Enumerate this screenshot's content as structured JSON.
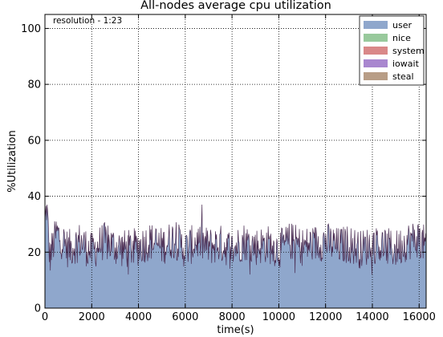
{
  "chart_data": {
    "type": "area",
    "title": "All-nodes average cpu utilization",
    "xlabel": "time(s)",
    "ylabel": "%Utilization",
    "annotation": "resolution - 1:23",
    "xlim": [
      0,
      16300
    ],
    "ylim": [
      0,
      105
    ],
    "x_ticks": [
      0,
      2000,
      4000,
      6000,
      8000,
      10000,
      12000,
      14000,
      16000
    ],
    "y_ticks": [
      0,
      20,
      40,
      60,
      80,
      100
    ],
    "grid": true,
    "legend_position": "top-right",
    "sample_interval": 23,
    "series": [
      {
        "name": "user",
        "color": "#8fa7cc",
        "summary": {
          "mean": 21.5,
          "min": 12,
          "max": 37
        }
      },
      {
        "name": "nice",
        "color": "#98c99c"
      },
      {
        "name": "system",
        "color": "#d98888"
      },
      {
        "name": "iowait",
        "color": "#a987cf"
      },
      {
        "name": "steal",
        "color": "#b89d86"
      }
    ],
    "envelope_line_color": "#4a2c52",
    "keypoints": [
      {
        "x": 0,
        "y": 30
      },
      {
        "x": 80,
        "y": 37
      },
      {
        "x": 200,
        "y": 18
      },
      {
        "x": 500,
        "y": 27
      },
      {
        "x": 1000,
        "y": 21
      },
      {
        "x": 1500,
        "y": 24
      },
      {
        "x": 2000,
        "y": 20
      },
      {
        "x": 2500,
        "y": 24
      },
      {
        "x": 3000,
        "y": 22
      },
      {
        "x": 3500,
        "y": 21
      },
      {
        "x": 4000,
        "y": 22
      },
      {
        "x": 4500,
        "y": 24
      },
      {
        "x": 5000,
        "y": 22
      },
      {
        "x": 5500,
        "y": 25
      },
      {
        "x": 6000,
        "y": 21
      },
      {
        "x": 6500,
        "y": 24
      },
      {
        "x": 7000,
        "y": 22
      },
      {
        "x": 7500,
        "y": 23
      },
      {
        "x": 8000,
        "y": 21
      },
      {
        "x": 8500,
        "y": 24
      },
      {
        "x": 9000,
        "y": 22
      },
      {
        "x": 9500,
        "y": 23
      },
      {
        "x": 10000,
        "y": 21
      },
      {
        "x": 10500,
        "y": 24
      },
      {
        "x": 11000,
        "y": 22
      },
      {
        "x": 11500,
        "y": 23
      },
      {
        "x": 12000,
        "y": 24
      },
      {
        "x": 12500,
        "y": 22
      },
      {
        "x": 13000,
        "y": 23
      },
      {
        "x": 13500,
        "y": 21
      },
      {
        "x": 14000,
        "y": 23
      },
      {
        "x": 14500,
        "y": 22
      },
      {
        "x": 15000,
        "y": 21
      },
      {
        "x": 15500,
        "y": 24
      },
      {
        "x": 16000,
        "y": 25
      },
      {
        "x": 16300,
        "y": 22
      }
    ]
  }
}
